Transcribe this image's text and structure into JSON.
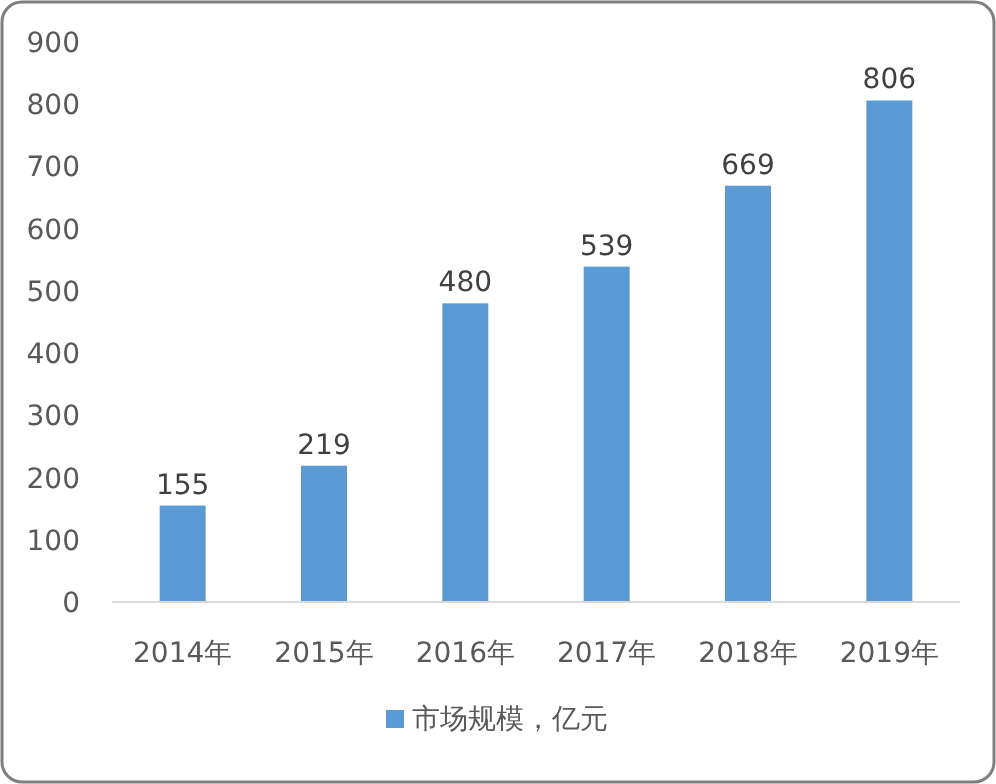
{
  "chart_data": {
    "type": "bar",
    "categories": [
      "2014年",
      "2015年",
      "2016年",
      "2017年",
      "2018年",
      "2019年"
    ],
    "series": [
      {
        "name": "市场规模，亿元",
        "color": "#5b9bd5",
        "values": [
          155,
          219,
          480,
          539,
          669,
          806
        ]
      }
    ],
    "ylim": [
      0,
      900
    ],
    "yticks": [
      0,
      100,
      200,
      300,
      400,
      500,
      600,
      700,
      800,
      900
    ],
    "data_labels": true,
    "legend": "bottom",
    "grid": false
  }
}
